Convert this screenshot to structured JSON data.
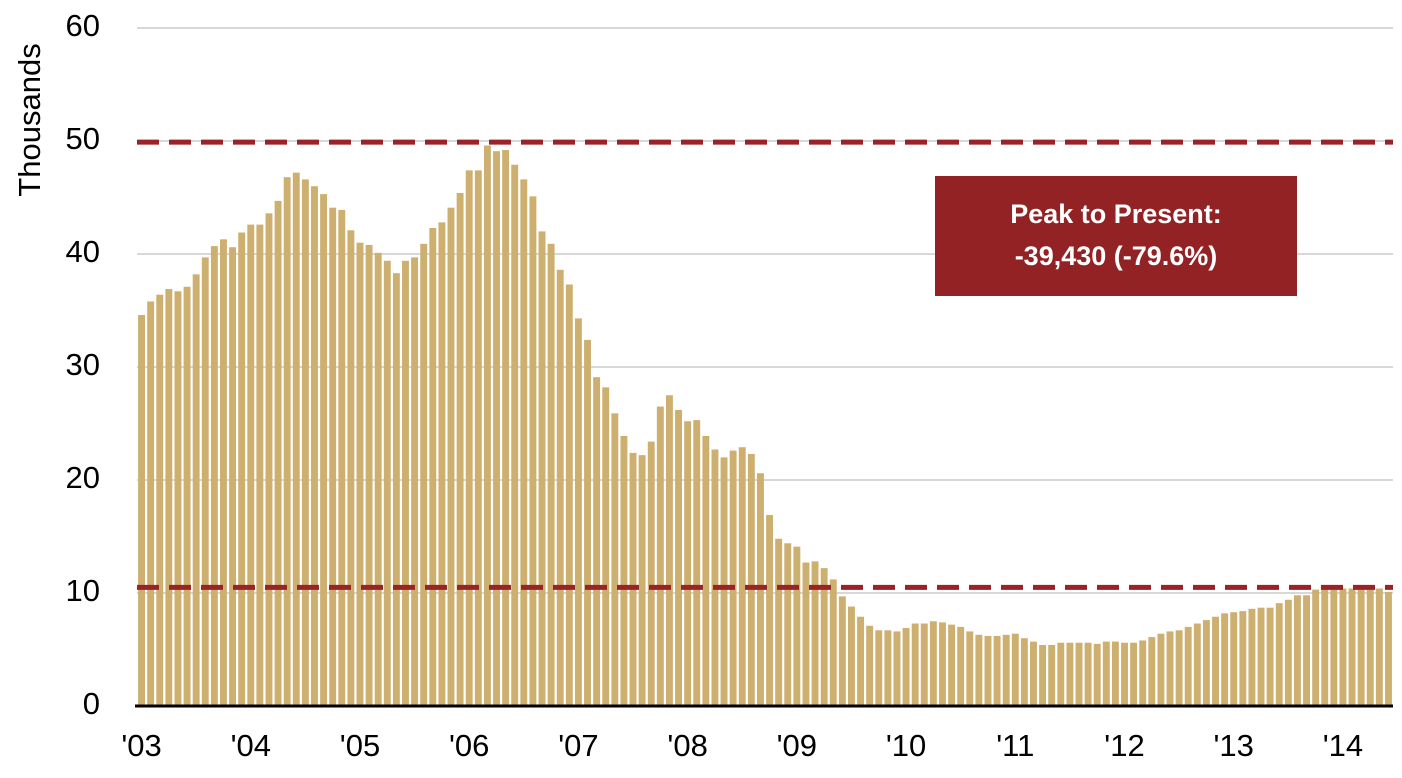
{
  "chart_data": {
    "type": "bar",
    "ylabel": "Thousands",
    "color": "#cdb06f",
    "grid": true,
    "ylim": [
      0,
      60
    ],
    "yticks": [
      0,
      10,
      20,
      30,
      40,
      50,
      60
    ],
    "categories": [
      "'03",
      null,
      null,
      null,
      null,
      null,
      null,
      null,
      null,
      null,
      null,
      null,
      "'04",
      null,
      null,
      null,
      null,
      null,
      null,
      null,
      null,
      null,
      null,
      null,
      "'05",
      null,
      null,
      null,
      null,
      null,
      null,
      null,
      null,
      null,
      null,
      null,
      "'06",
      null,
      null,
      null,
      null,
      null,
      null,
      null,
      null,
      null,
      null,
      null,
      "'07",
      null,
      null,
      null,
      null,
      null,
      null,
      null,
      null,
      null,
      null,
      null,
      "'08",
      null,
      null,
      null,
      null,
      null,
      null,
      null,
      null,
      null,
      null,
      null,
      "'09",
      null,
      null,
      null,
      null,
      null,
      null,
      null,
      null,
      null,
      null,
      null,
      "'10",
      null,
      null,
      null,
      null,
      null,
      null,
      null,
      null,
      null,
      null,
      null,
      "'11",
      null,
      null,
      null,
      null,
      null,
      null,
      null,
      null,
      null,
      null,
      null,
      "'12",
      null,
      null,
      null,
      null,
      null,
      null,
      null,
      null,
      null,
      null,
      null,
      "'13",
      null,
      null,
      null,
      null,
      null,
      null,
      null,
      null,
      null,
      null,
      null,
      "'14",
      null,
      null,
      null,
      null,
      null
    ],
    "values": [
      34.6,
      35.8,
      36.4,
      36.9,
      36.7,
      37.1,
      38.2,
      39.7,
      40.7,
      41.3,
      40.6,
      41.9,
      42.6,
      42.6,
      43.6,
      44.7,
      46.8,
      47.2,
      46.6,
      46.0,
      45.3,
      44.1,
      43.9,
      42.1,
      41.0,
      40.8,
      40.1,
      39.4,
      38.3,
      39.4,
      39.7,
      40.9,
      42.3,
      42.8,
      44.1,
      45.4,
      47.4,
      47.4,
      49.6,
      49.1,
      49.2,
      47.9,
      46.6,
      45.1,
      42.0,
      40.9,
      38.6,
      37.3,
      34.3,
      32.4,
      29.1,
      28.2,
      25.9,
      23.9,
      22.4,
      22.2,
      23.4,
      26.5,
      27.5,
      26.2,
      25.2,
      25.3,
      23.9,
      22.7,
      22.0,
      22.6,
      22.9,
      22.3,
      20.6,
      16.9,
      14.8,
      14.4,
      14.1,
      12.7,
      12.8,
      12.2,
      11.2,
      9.7,
      8.8,
      7.9,
      7.1,
      6.7,
      6.7,
      6.6,
      6.9,
      7.3,
      7.3,
      7.5,
      7.4,
      7.2,
      7.0,
      6.6,
      6.3,
      6.2,
      6.2,
      6.3,
      6.4,
      6.0,
      5.7,
      5.4,
      5.4,
      5.6,
      5.6,
      5.6,
      5.6,
      5.5,
      5.7,
      5.7,
      5.6,
      5.6,
      5.8,
      6.1,
      6.4,
      6.6,
      6.7,
      7.0,
      7.3,
      7.6,
      7.9,
      8.2,
      8.3,
      8.4,
      8.6,
      8.7,
      8.7,
      9.1,
      9.4,
      9.8,
      9.8,
      10.3,
      10.4,
      10.3,
      10.4,
      10.4,
      10.3,
      10.3,
      10.4,
      10.1
    ],
    "reference_lines": [
      {
        "value": 49.9,
        "color": "#9b2226"
      },
      {
        "value": 10.5,
        "color": "#9b2226"
      }
    ],
    "annotation": {
      "lines": [
        "Peak to Present:",
        "-39,430 (-79.6%)"
      ],
      "color": "#922224"
    }
  }
}
